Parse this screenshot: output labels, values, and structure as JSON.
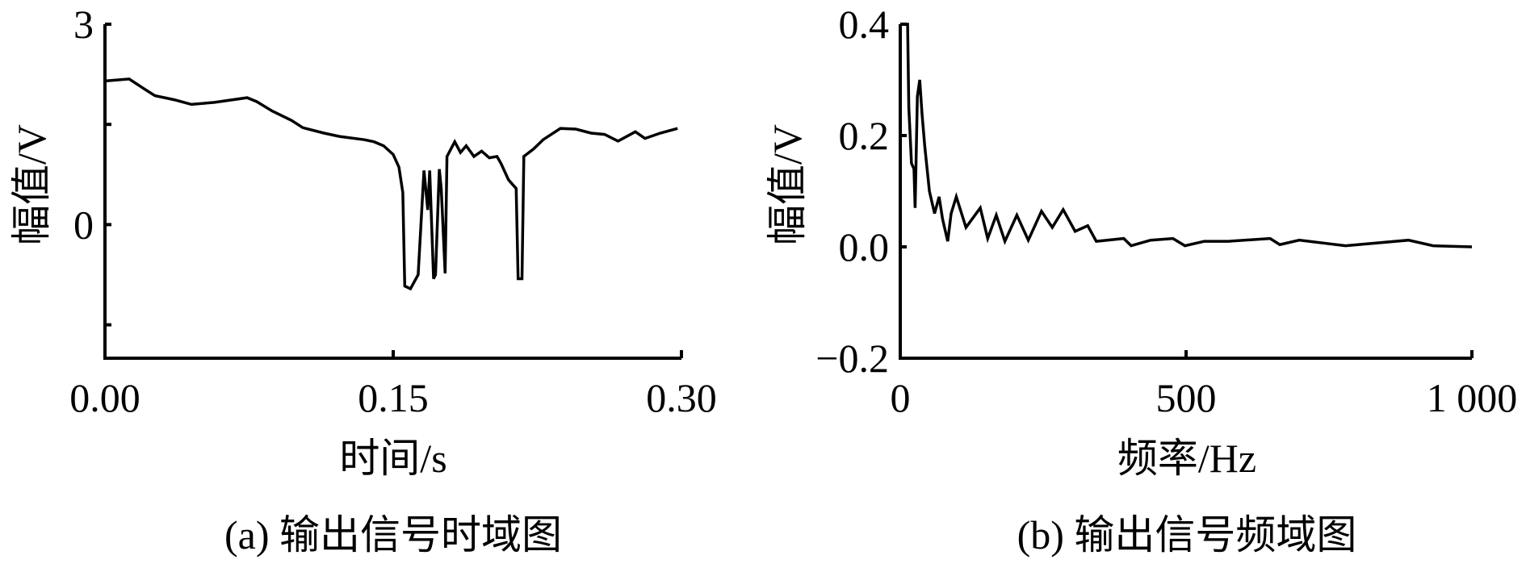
{
  "chart_data": [
    {
      "type": "line",
      "caption": "(a) 输出信号时域图",
      "xlabel": "时间/s",
      "ylabel": "幅值/V",
      "xlim": [
        0,
        0.3
      ],
      "ylim": [
        -2,
        3
      ],
      "xticks": [
        0,
        0.15,
        0.3
      ],
      "xtick_labels": [
        "0.00",
        "0.15",
        "0.30"
      ],
      "yticks": [
        3,
        1.5,
        0,
        -1.5
      ],
      "ytick_labels": [
        "3",
        "",
        "0",
        ""
      ],
      "grid": false,
      "color": "#000000",
      "series": [
        {
          "x": [
            0,
            0.0126,
            0.021,
            0.026,
            0.036,
            0.045,
            0.057,
            0.074,
            0.079,
            0.087,
            0.097,
            0.103,
            0.114,
            0.122,
            0.135,
            0.14,
            0.145,
            0.15,
            0.153,
            0.155,
            0.156,
            0.159,
            0.163,
            0.166,
            0.168,
            0.169,
            0.171,
            0.172,
            0.174,
            0.175,
            0.177,
            0.178,
            0.182,
            0.185,
            0.188,
            0.192,
            0.196,
            0.2,
            0.204,
            0.206,
            0.21,
            0.214,
            0.215,
            0.217,
            0.218,
            0.223,
            0.228,
            0.237,
            0.245,
            0.253,
            0.26,
            0.267,
            0.276,
            0.281,
            0.289,
            0.298
          ],
          "y": [
            2.15,
            2.18,
            2.02,
            1.93,
            1.87,
            1.8,
            1.83,
            1.9,
            1.84,
            1.7,
            1.56,
            1.45,
            1.37,
            1.32,
            1.27,
            1.24,
            1.18,
            1.05,
            0.86,
            0.48,
            -0.92,
            -0.96,
            -0.75,
            0.81,
            0.22,
            0.81,
            -0.81,
            -0.75,
            0.83,
            0.54,
            -0.73,
            1.02,
            1.24,
            1.08,
            1.18,
            1.02,
            1.1,
            1.0,
            1.02,
            0.92,
            0.67,
            0.54,
            -0.81,
            -0.81,
            1.02,
            1.13,
            1.27,
            1.44,
            1.43,
            1.37,
            1.35,
            1.25,
            1.39,
            1.29,
            1.37,
            1.44
          ]
        }
      ]
    },
    {
      "type": "line",
      "caption": "(b) 输出信号频域图",
      "xlabel": "频率/Hz",
      "ylabel": "幅值/V",
      "xlim": [
        0,
        1000
      ],
      "ylim": [
        -0.2,
        0.4
      ],
      "xticks": [
        0,
        500,
        1000
      ],
      "xtick_labels": [
        "0",
        "500",
        "1 000"
      ],
      "yticks": [
        0.4,
        0.2,
        0.0,
        -0.2
      ],
      "ytick_labels": [
        "0.4",
        "0.2",
        "0.0",
        "−0.2"
      ],
      "grid": false,
      "color": "#000000",
      "series": [
        {
          "x": [
            0,
            12.8,
            15,
            19.6,
            24,
            26,
            30,
            34,
            38,
            43,
            51,
            60,
            68,
            74,
            83,
            89,
            98,
            115,
            140,
            153,
            168,
            183,
            204,
            224,
            247,
            266,
            285,
            306,
            328,
            343,
            391,
            404,
            438,
            477,
            498,
            532,
            574,
            647,
            664,
            698,
            779,
            889,
            932,
            1000
          ],
          "y": [
            0.4,
            0.4,
            0.25,
            0.15,
            0.14,
            0.07,
            0.27,
            0.3,
            0.24,
            0.18,
            0.1,
            0.06,
            0.09,
            0.05,
            0.01,
            0.06,
            0.09,
            0.035,
            0.07,
            0.015,
            0.057,
            0.01,
            0.057,
            0.012,
            0.064,
            0.035,
            0.067,
            0.028,
            0.038,
            0.01,
            0.015,
            0.002,
            0.012,
            0.015,
            0.002,
            0.01,
            0.01,
            0.015,
            0.004,
            0.012,
            0.002,
            0.012,
            0.002,
            0.0
          ]
        }
      ]
    }
  ]
}
